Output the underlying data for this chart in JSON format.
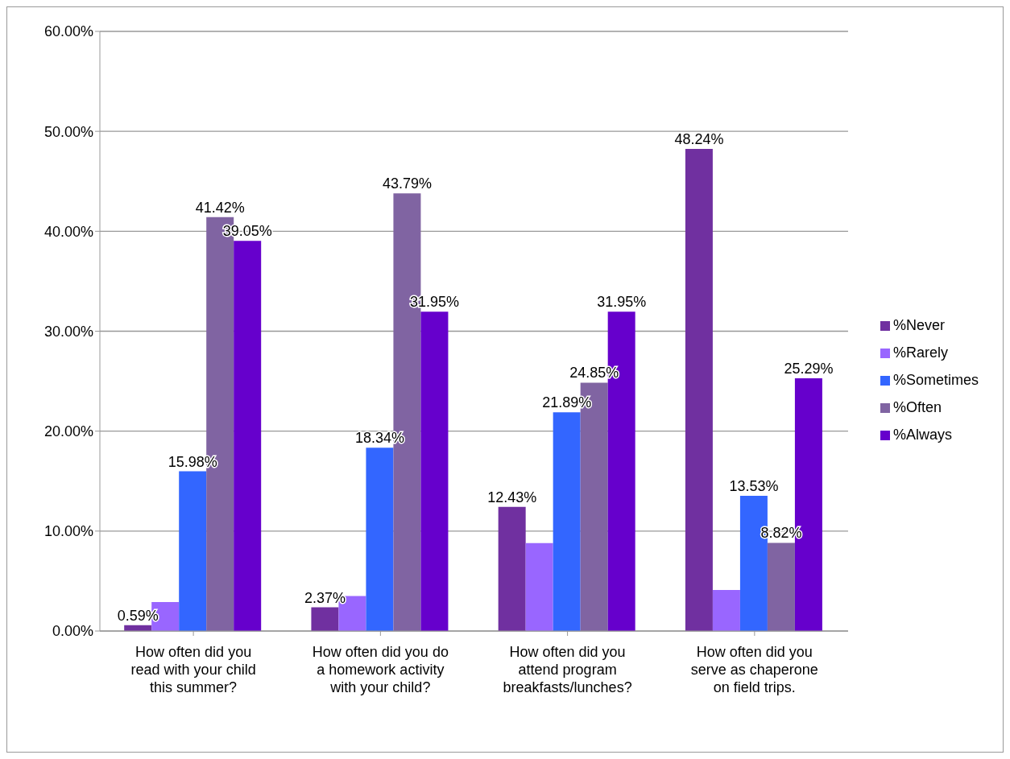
{
  "chart_data": {
    "type": "bar",
    "categories": [
      "How often did you read with your child this summer?",
      "How often did you do a homework activity with your child?",
      "How often did you attend program breakfasts/lunches?",
      "How often did you serve as chaperone on field trips."
    ],
    "series": [
      {
        "name": "%Never",
        "color": "#7030a0",
        "values": [
          0.59,
          2.37,
          12.43,
          48.24
        ],
        "value_labels": [
          "0.59%",
          "2.37%",
          "12.43%",
          "48.24%"
        ]
      },
      {
        "name": "%Rarely",
        "color": "#9966ff",
        "values": [
          2.9,
          3.5,
          8.8,
          4.1
        ],
        "value_labels": [
          null,
          null,
          null,
          null
        ]
      },
      {
        "name": "%Sometimes",
        "color": "#3366ff",
        "values": [
          15.98,
          18.34,
          21.89,
          13.53
        ],
        "value_labels": [
          "15.98%",
          "18.34%",
          "21.89%",
          "13.53%"
        ]
      },
      {
        "name": "%Often",
        "color": "#8064a2",
        "values": [
          41.42,
          43.79,
          24.85,
          8.82
        ],
        "value_labels": [
          "41.42%",
          "43.79%",
          "24.85%",
          "8.82%"
        ]
      },
      {
        "name": "%Always",
        "color": "#6600cc",
        "values": [
          39.05,
          31.95,
          31.95,
          25.29
        ],
        "value_labels": [
          "39.05%",
          "31.95%",
          "31.95%",
          "25.29%"
        ]
      }
    ],
    "ylim": [
      0,
      60
    ],
    "yticks": [
      {
        "value": 0,
        "label": "0.00%"
      },
      {
        "value": 10,
        "label": "10.00%"
      },
      {
        "value": 20,
        "label": "20.00%"
      },
      {
        "value": 30,
        "label": "30.00%"
      },
      {
        "value": 40,
        "label": "40.00%"
      },
      {
        "value": 50,
        "label": "50.00%"
      },
      {
        "value": 60,
        "label": "60.00%"
      }
    ],
    "grid": "y",
    "legend": "right"
  }
}
